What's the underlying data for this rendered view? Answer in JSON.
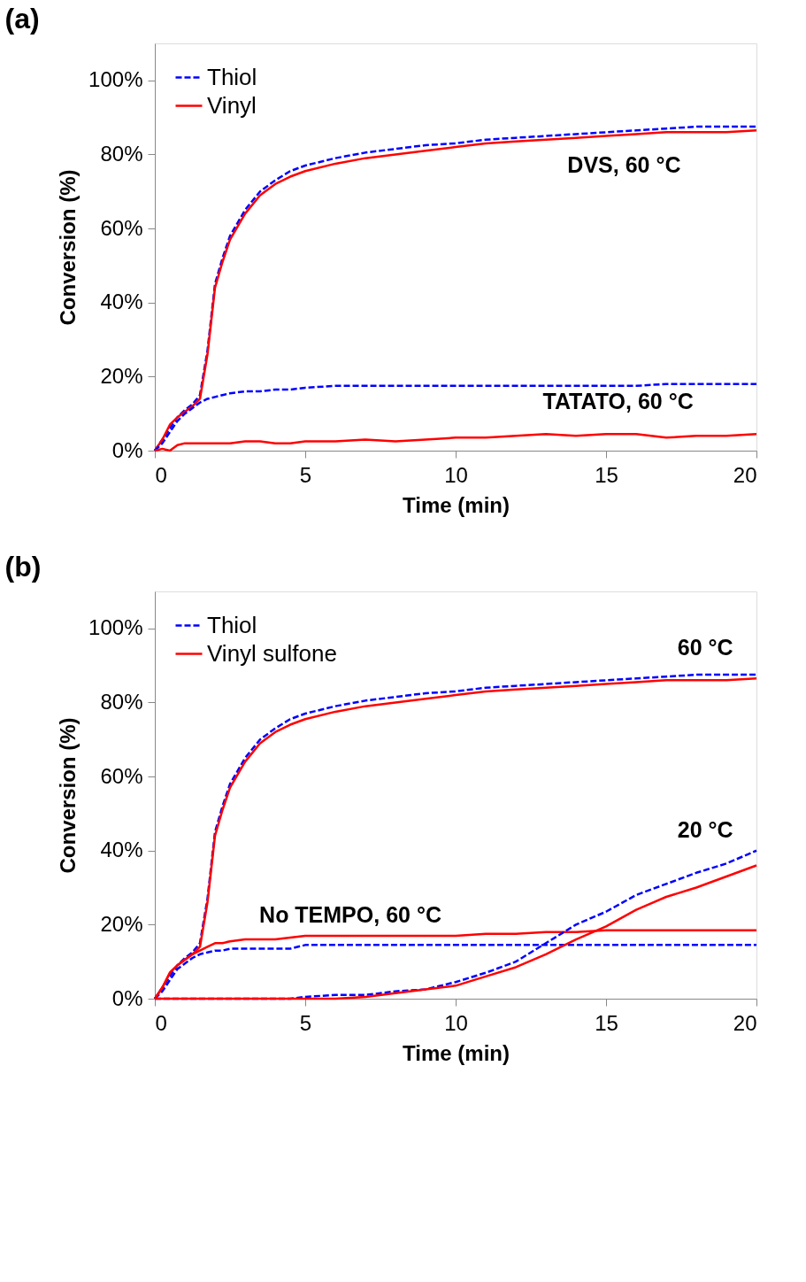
{
  "chart_data": [
    {
      "type": "line",
      "title": "(a)",
      "xlabel": "Time (min)",
      "ylabel": "Conversion (%)",
      "x": [
        0,
        0.25,
        0.5,
        0.75,
        1,
        1.25,
        1.5,
        1.75,
        2,
        2.25,
        2.5,
        3,
        3.5,
        4,
        4.5,
        5,
        6,
        7,
        8,
        9,
        10,
        11,
        12,
        13,
        14,
        15,
        16,
        17,
        18,
        19,
        20
      ],
      "series": [
        {
          "name": "Thiol",
          "color": "#0000ff",
          "line_style": "dashed",
          "values": [
            0,
            3,
            6,
            9,
            11,
            12.5,
            15,
            27,
            45,
            52,
            58,
            65,
            70,
            73,
            75.5,
            77,
            79,
            80.5,
            81.5,
            82.5,
            83,
            84,
            84.5,
            85,
            85.5,
            86,
            86.5,
            87,
            87.5,
            87.5,
            87.5
          ]
        },
        {
          "name": "Vinyl",
          "color": "#ff0000",
          "line_style": "solid",
          "values": [
            0,
            3,
            7,
            9,
            10.5,
            12,
            14,
            26,
            44,
            51,
            57,
            64,
            69,
            72,
            74,
            75.5,
            77.5,
            79,
            80,
            81,
            82,
            83,
            83.5,
            84,
            84.5,
            85,
            85.5,
            86,
            86,
            86,
            86.5
          ]
        },
        {
          "color": "#0000ff",
          "line_style": "dashed",
          "values": [
            0,
            2,
            5,
            8,
            10,
            11.5,
            13,
            14,
            14.5,
            15,
            15.5,
            16,
            16,
            16.5,
            16.5,
            17,
            17.5,
            17.5,
            17.5,
            17.5,
            17.5,
            17.5,
            17.5,
            17.5,
            17.5,
            17.5,
            17.5,
            18,
            18,
            18,
            18
          ]
        },
        {
          "color": "#ff0000",
          "line_style": "solid",
          "values": [
            0,
            0.5,
            0,
            1.5,
            2,
            2,
            2,
            2,
            2,
            2,
            2,
            2.5,
            2.5,
            2,
            2,
            2.5,
            2.5,
            3,
            2.5,
            3,
            3.5,
            3.5,
            4,
            4.5,
            4,
            4.5,
            4.5,
            3.5,
            4,
            4,
            4.5
          ]
        }
      ],
      "annotations": [
        "DVS, 60 °C",
        "TATATO, 60 °C"
      ],
      "xlim": [
        0,
        20
      ],
      "xticks": [
        0,
        5,
        10,
        15,
        20
      ],
      "ylim": [
        0,
        110
      ],
      "yticks": [
        {
          "value": 0,
          "label": "0%"
        },
        {
          "value": 20,
          "label": "20%"
        },
        {
          "value": 40,
          "label": "40%"
        },
        {
          "value": 60,
          "label": "60%"
        },
        {
          "value": 80,
          "label": "80%"
        },
        {
          "value": 100,
          "label": "100%"
        }
      ],
      "legend": "top left",
      "grid": false,
      "marker": "none"
    },
    {
      "type": "line",
      "title": "(b)",
      "xlabel": "Time (min)",
      "ylabel": "Conversion (%)",
      "x": [
        0,
        0.25,
        0.5,
        0.75,
        1,
        1.25,
        1.5,
        1.75,
        2,
        2.25,
        2.5,
        3,
        3.5,
        4,
        4.5,
        5,
        6,
        7,
        8,
        9,
        10,
        11,
        12,
        13,
        14,
        15,
        16,
        17,
        18,
        19,
        20
      ],
      "series": [
        {
          "name": "Thiol",
          "color": "#0000ff",
          "line_style": "dashed",
          "values": [
            0,
            3,
            6,
            9,
            11,
            12.5,
            15,
            27,
            45,
            52,
            58,
            65,
            70,
            73,
            75.5,
            77,
            79,
            80.5,
            81.5,
            82.5,
            83,
            84,
            84.5,
            85,
            85.5,
            86,
            86.5,
            87,
            87.5,
            87.5,
            87.5
          ]
        },
        {
          "name": "Vinyl sulfone",
          "color": "#ff0000",
          "line_style": "solid",
          "values": [
            0,
            3,
            7,
            9,
            10.5,
            12,
            14,
            26,
            44,
            51,
            57,
            64,
            69,
            72,
            74,
            75.5,
            77.5,
            79,
            80,
            81,
            82,
            83,
            83.5,
            84,
            84.5,
            85,
            85.5,
            86,
            86,
            86,
            86.5
          ]
        },
        {
          "color": "#0000ff",
          "line_style": "dashed",
          "values": [
            0,
            2,
            5,
            8,
            9.5,
            11,
            12,
            12.5,
            13,
            13,
            13.5,
            13.5,
            13.5,
            13.5,
            13.5,
            14.5,
            14.5,
            14.5,
            14.5,
            14.5,
            14.5,
            14.5,
            14.5,
            14.5,
            14.5,
            14.5,
            14.5,
            14.5,
            14.5,
            14.5,
            14.5
          ]
        },
        {
          "color": "#ff0000",
          "line_style": "solid",
          "values": [
            0,
            3,
            7,
            9,
            10.5,
            12,
            13,
            14,
            15,
            15,
            15.5,
            16,
            16,
            16,
            16.5,
            17,
            17,
            17,
            17,
            17,
            17,
            17.5,
            17.5,
            18,
            18,
            18.5,
            18.5,
            18.5,
            18.5,
            18.5,
            18.5
          ]
        },
        {
          "color": "#0000ff",
          "line_style": "dashed",
          "values": [
            0,
            0,
            0,
            0,
            0,
            0,
            0,
            0,
            0,
            0,
            0,
            0,
            0,
            0,
            0,
            0.5,
            1,
            1,
            2,
            2.5,
            4.5,
            7,
            10,
            15,
            20,
            23.5,
            28,
            31,
            34,
            36.5,
            40
          ]
        },
        {
          "color": "#ff0000",
          "line_style": "solid",
          "values": [
            0,
            0,
            0,
            0,
            0,
            0,
            0,
            0,
            0,
            0,
            0,
            0,
            0,
            0,
            0,
            0,
            0,
            0.5,
            1.5,
            2.5,
            3.5,
            6,
            8.5,
            12,
            16,
            19.5,
            24,
            27.5,
            30,
            33,
            36
          ]
        }
      ],
      "annotations": [
        "60 °C",
        "20 °C",
        "No TEMPO, 60 °C"
      ],
      "xlim": [
        0,
        20
      ],
      "xticks": [
        0,
        5,
        10,
        15,
        20
      ],
      "ylim": [
        0,
        110
      ],
      "yticks": [
        {
          "value": 0,
          "label": "0%"
        },
        {
          "value": 20,
          "label": "20%"
        },
        {
          "value": 40,
          "label": "40%"
        },
        {
          "value": 60,
          "label": "60%"
        },
        {
          "value": 80,
          "label": "80%"
        },
        {
          "value": 100,
          "label": "100%"
        }
      ],
      "legend": "top left",
      "grid": false,
      "marker": "none"
    }
  ]
}
